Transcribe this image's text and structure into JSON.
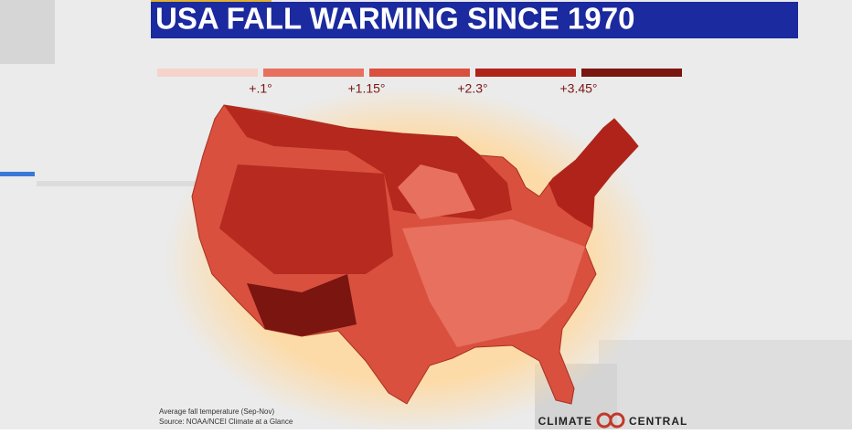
{
  "header": {
    "title": "USA FALL WARMING SINCE 1970"
  },
  "legend": {
    "colors": [
      "#f6d3ca",
      "#e8705e",
      "#d9503f",
      "#b0231a",
      "#7a1510"
    ],
    "labels": [
      "+.1°",
      "+1.15°",
      "+2.3°",
      "+3.45°"
    ]
  },
  "footnote": {
    "lines": [
      "Average fall temperature (Sep-Nov)",
      "Source: NOAA/NCEI Climate at a Glance"
    ]
  },
  "logo": {
    "left": "CLIMATE",
    "right": "CENTRAL"
  }
}
